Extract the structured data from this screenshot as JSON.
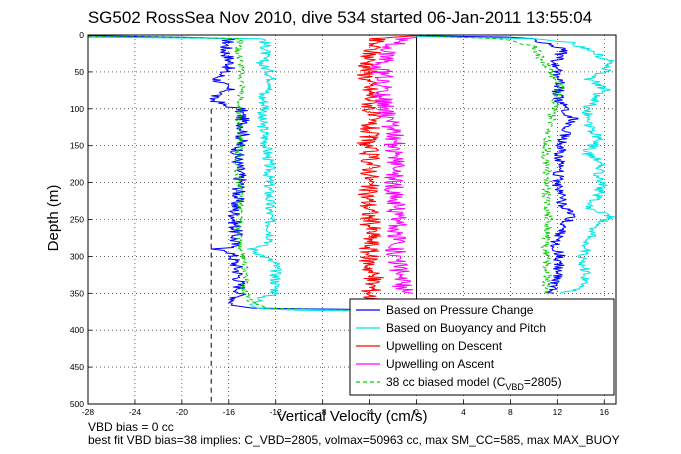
{
  "title": "SG502 RossSea Nov 2010, dive 534 started 06-Jan-2011 13:55:04",
  "footer": {
    "line1": "VBD bias = 0 cc",
    "line2": "best fit VBD bias=38 implies: C_VBD=2805, volmax=50963 cc, max SM_CC=585, max MAX_BUOY"
  },
  "chart_data": {
    "type": "line",
    "xlabel": "Vertical Velocity (cm/s)",
    "ylabel": "Depth (m)",
    "xlim": [
      -28,
      17
    ],
    "ylim": [
      0,
      500
    ],
    "y_reversed": true,
    "grid": true,
    "grid_style": "dotted",
    "xticks": [
      -28,
      -24,
      -20,
      -16,
      -12,
      -8,
      -4,
      0,
      4,
      8,
      12,
      16
    ],
    "yticks": [
      0,
      50,
      100,
      150,
      200,
      250,
      300,
      350,
      400,
      450,
      500
    ],
    "reference_lines": [
      {
        "axis": "x",
        "value": 0,
        "style": "solid",
        "color": "#000000",
        "y_range": [
          0,
          400
        ]
      },
      {
        "axis": "x",
        "value": -17.5,
        "style": "dashed",
        "color": "#000000",
        "y_range": [
          100,
          500
        ]
      }
    ],
    "legend_position": "lower-right",
    "legend": [
      {
        "label": "Based on Pressure Change",
        "color": "#0000ff",
        "dash": false
      },
      {
        "label": "Based on Buoyancy and Pitch",
        "color": "#00e5e5",
        "dash": false
      },
      {
        "label": "Upwelling on Descent",
        "color": "#ff0000",
        "dash": false
      },
      {
        "label": "Upwelling on Ascent",
        "color": "#ff00ff",
        "dash": false
      },
      {
        "label": "38 cc biased model (C",
        "sub": "VBD",
        "suffix": "=2805)",
        "color": "#00cc00",
        "dash": true
      }
    ],
    "series": [
      {
        "key": "descent_pressure",
        "color": "#0000ff",
        "dash": false,
        "noise": 0.6,
        "points": [
          [
            -28,
            1
          ],
          [
            -20,
            3
          ],
          [
            -16,
            5
          ],
          [
            -16.3,
            20
          ],
          [
            -15.8,
            40
          ],
          [
            -17,
            60
          ],
          [
            -16,
            75
          ],
          [
            -17.5,
            85
          ],
          [
            -16.5,
            95
          ],
          [
            -15,
            100
          ],
          [
            -14.7,
            130
          ],
          [
            -15.3,
            160
          ],
          [
            -15,
            200
          ],
          [
            -15.5,
            240
          ],
          [
            -15.4,
            270
          ],
          [
            -15.6,
            288
          ],
          [
            -17.5,
            290
          ],
          [
            -15.8,
            293
          ],
          [
            -15.2,
            320
          ],
          [
            -15,
            350
          ],
          [
            -15.5,
            360
          ],
          [
            -15.8,
            366
          ],
          [
            -14,
            370
          ],
          [
            -10,
            371
          ],
          [
            -4,
            372
          ],
          [
            0,
            375
          ]
        ]
      },
      {
        "key": "descent_buoyancy",
        "color": "#00e5e5",
        "dash": false,
        "noise": 0.5,
        "points": [
          [
            -28,
            3
          ],
          [
            -20,
            4
          ],
          [
            -13,
            5
          ],
          [
            -12.8,
            20
          ],
          [
            -13.2,
            40
          ],
          [
            -12.5,
            50
          ],
          [
            -12.2,
            70
          ],
          [
            -13.2,
            80
          ],
          [
            -12.8,
            100
          ],
          [
            -13.3,
            110
          ],
          [
            -13,
            130
          ],
          [
            -12.8,
            150
          ],
          [
            -12.5,
            185
          ],
          [
            -12.6,
            190
          ],
          [
            -12.5,
            250
          ],
          [
            -12.3,
            280
          ],
          [
            -14,
            290
          ],
          [
            -12,
            310
          ],
          [
            -12,
            350
          ],
          [
            -13,
            355
          ],
          [
            -14,
            365
          ],
          [
            -13,
            371
          ],
          [
            -10,
            373
          ],
          [
            -4,
            374
          ],
          [
            0,
            376
          ]
        ]
      },
      {
        "key": "descent_model",
        "color": "#00cc00",
        "dash": true,
        "noise": 0.3,
        "points": [
          [
            -28,
            2
          ],
          [
            -20,
            3
          ],
          [
            -15,
            5
          ],
          [
            -15.2,
            20
          ],
          [
            -14.9,
            40
          ],
          [
            -15,
            55
          ],
          [
            -14.8,
            70
          ],
          [
            -15.2,
            100
          ],
          [
            -15,
            140
          ],
          [
            -15.3,
            180
          ],
          [
            -15,
            220
          ],
          [
            -15.2,
            260
          ],
          [
            -15.1,
            290
          ],
          [
            -14.8,
            300
          ],
          [
            -14.5,
            325
          ],
          [
            -14.7,
            345
          ],
          [
            -14.2,
            360
          ],
          [
            -13,
            370
          ],
          [
            -8,
            372
          ],
          [
            0,
            374
          ]
        ]
      },
      {
        "key": "ascent_pressure",
        "color": "#0000ff",
        "dash": false,
        "noise": 0.5,
        "points": [
          [
            11.5,
            350
          ],
          [
            12,
            330
          ],
          [
            12.2,
            300
          ],
          [
            11.8,
            280
          ],
          [
            12.5,
            260
          ],
          [
            13.5,
            243
          ],
          [
            12.5,
            235
          ],
          [
            12,
            200
          ],
          [
            12.3,
            150
          ],
          [
            12.8,
            125
          ],
          [
            13.5,
            115
          ],
          [
            12.5,
            100
          ],
          [
            12,
            80
          ],
          [
            12.3,
            60
          ],
          [
            11.7,
            40
          ],
          [
            12.5,
            20
          ],
          [
            10,
            5
          ],
          [
            8,
            3
          ],
          [
            0,
            1
          ]
        ]
      },
      {
        "key": "ascent_buoyancy",
        "color": "#00e5e5",
        "dash": false,
        "noise": 0.5,
        "points": [
          [
            12.5,
            350
          ],
          [
            14.5,
            340
          ],
          [
            14.2,
            300
          ],
          [
            15,
            265
          ],
          [
            16.5,
            245
          ],
          [
            14.8,
            235
          ],
          [
            16,
            200
          ],
          [
            15.2,
            190
          ],
          [
            16,
            175
          ],
          [
            14.5,
            160
          ],
          [
            15.5,
            140
          ],
          [
            14.6,
            120
          ],
          [
            14.5,
            100
          ],
          [
            15.5,
            80
          ],
          [
            16.2,
            75
          ],
          [
            14.8,
            60
          ],
          [
            16,
            50
          ],
          [
            16.5,
            35
          ],
          [
            14.5,
            20
          ],
          [
            13,
            10
          ],
          [
            10,
            5
          ],
          [
            0,
            2
          ]
        ]
      },
      {
        "key": "ascent_model",
        "color": "#00cc00",
        "dash": true,
        "noise": 0.4,
        "points": [
          [
            11,
            350
          ],
          [
            11.2,
            320
          ],
          [
            11,
            290
          ],
          [
            11.3,
            250
          ],
          [
            11,
            220
          ],
          [
            11.2,
            190
          ],
          [
            11,
            160
          ],
          [
            11.3,
            125
          ],
          [
            11.8,
            95
          ],
          [
            12.2,
            70
          ],
          [
            11.5,
            50
          ],
          [
            10.5,
            30
          ],
          [
            10,
            15
          ],
          [
            7,
            5
          ],
          [
            0,
            1
          ]
        ]
      },
      {
        "key": "upwelling_descent",
        "color": "#ff0000",
        "dash": false,
        "noise": 0.9,
        "points": [
          [
            0,
            1
          ],
          [
            -2,
            3
          ],
          [
            -3.5,
            5
          ],
          [
            -4,
            30
          ],
          [
            -4.2,
            60
          ],
          [
            -3.8,
            90
          ],
          [
            -4,
            120
          ],
          [
            -4.2,
            150
          ],
          [
            -3.8,
            180
          ],
          [
            -4.2,
            210
          ],
          [
            -4,
            240
          ],
          [
            -3.8,
            270
          ],
          [
            -4.1,
            300
          ],
          [
            -3.7,
            330
          ],
          [
            -3.9,
            360
          ],
          [
            -4,
            370
          ]
        ]
      },
      {
        "key": "upwelling_ascent",
        "color": "#ff00ff",
        "dash": false,
        "noise": 0.9,
        "points": [
          [
            -1,
            350
          ],
          [
            -1.5,
            320
          ],
          [
            -1.8,
            290
          ],
          [
            -1.5,
            250
          ],
          [
            -2,
            210
          ],
          [
            -1.7,
            170
          ],
          [
            -2,
            130
          ],
          [
            -2.5,
            100
          ],
          [
            -3,
            80
          ],
          [
            -2.8,
            60
          ],
          [
            -3,
            40
          ],
          [
            -2.5,
            20
          ],
          [
            -1.5,
            8
          ],
          [
            0,
            2
          ]
        ]
      }
    ]
  }
}
